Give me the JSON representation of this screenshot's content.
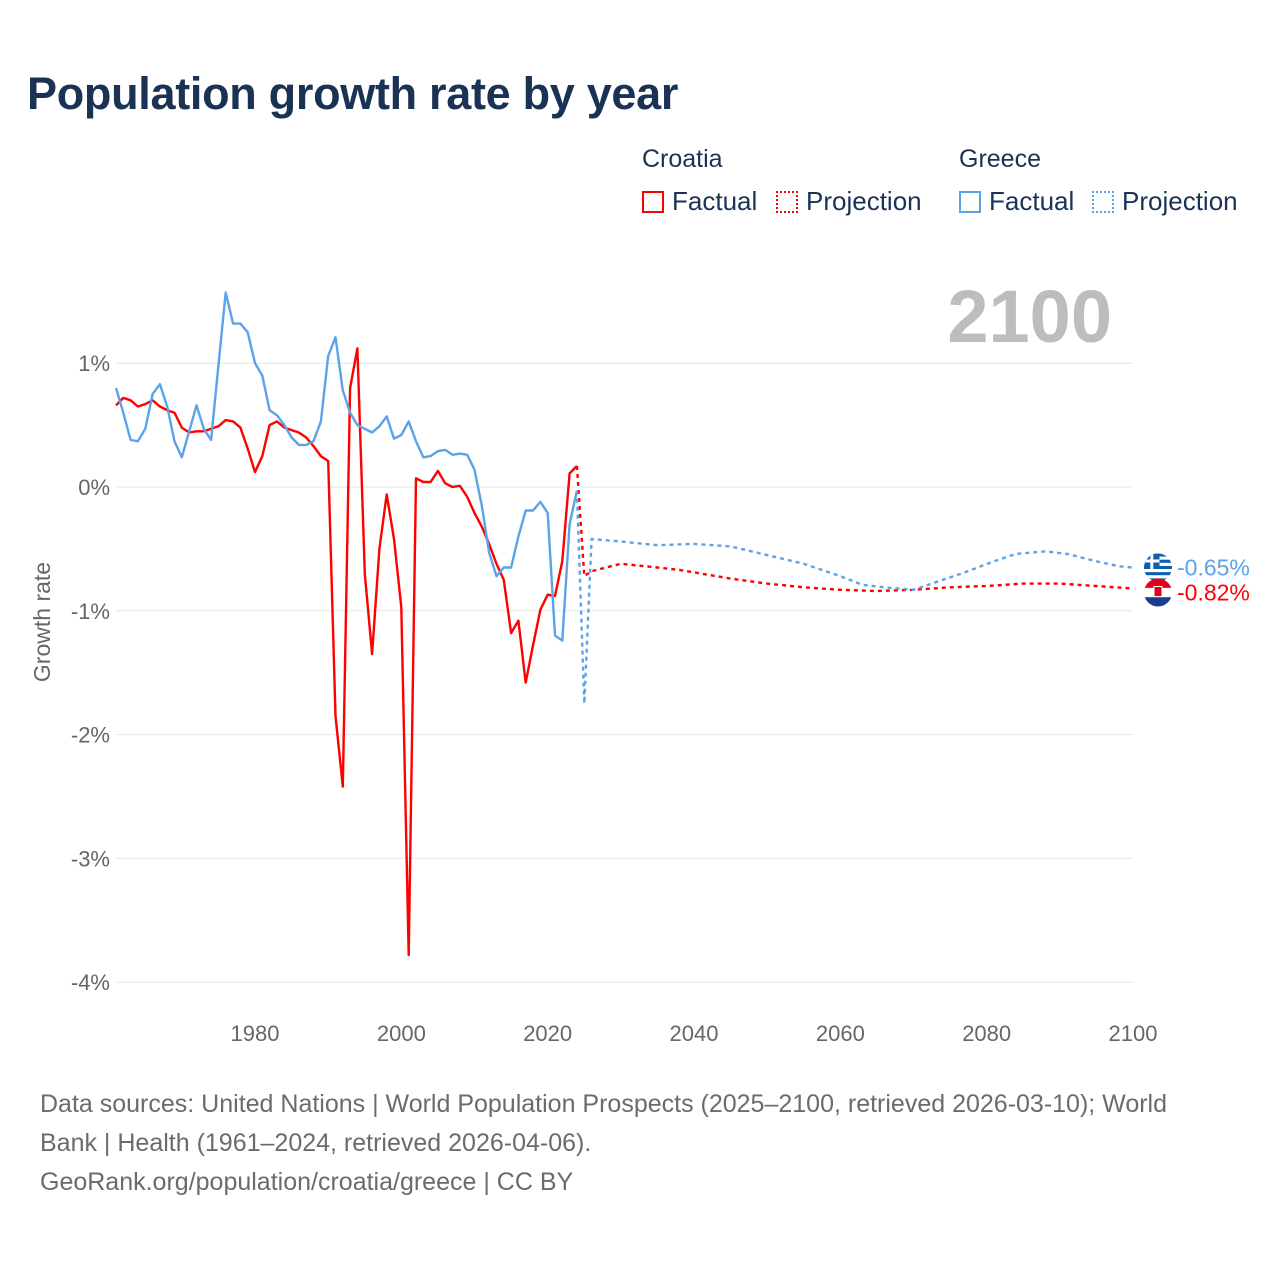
{
  "title": "Population growth rate by year",
  "legend": {
    "groups": [
      {
        "name": "Croatia",
        "color": "#ff0000",
        "factual": "Factual",
        "projection": "Projection"
      },
      {
        "name": "Greece",
        "color": "#5ba3e8",
        "factual": "Factual",
        "projection": "Projection"
      }
    ]
  },
  "year_display": "2100",
  "footer": {
    "line1": "Data sources: United Nations | World Population Prospects (2025–2100, retrieved 2026-03-10); World",
    "line2": "Bank | Health (1961–2024, retrieved 2026-04-06).",
    "line3": "GeoRank.org/population/croatia/greece | CC BY"
  },
  "chart_data": {
    "type": "line",
    "title": "Population growth rate by year",
    "xlabel": "",
    "ylabel": "Growth rate",
    "xlim": [
      1961,
      2100
    ],
    "ylim": [
      -4.2,
      1.8
    ],
    "grid": true,
    "x_ticks": [
      {
        "v": 1980,
        "label": "1980"
      },
      {
        "v": 2000,
        "label": "2000"
      },
      {
        "v": 2020,
        "label": "2020"
      },
      {
        "v": 2040,
        "label": "2040"
      },
      {
        "v": 2060,
        "label": "2060"
      },
      {
        "v": 2080,
        "label": "2080"
      },
      {
        "v": 2100,
        "label": "2100"
      }
    ],
    "y_ticks": [
      {
        "v": 1,
        "label": "1%"
      },
      {
        "v": 0,
        "label": "0%"
      },
      {
        "v": -1,
        "label": "-1%"
      },
      {
        "v": -2,
        "label": "-2%"
      },
      {
        "v": -3,
        "label": "-3%"
      },
      {
        "v": -4,
        "label": "-4%"
      }
    ],
    "series": [
      {
        "name": "Croatia",
        "kind": "factual",
        "color": "#ff0000",
        "x_start": 1961,
        "values": [
          0.66,
          0.72,
          0.7,
          0.65,
          0.67,
          0.7,
          0.65,
          0.62,
          0.6,
          0.48,
          0.44,
          0.45,
          0.45,
          0.47,
          0.49,
          0.54,
          0.53,
          0.48,
          0.31,
          0.12,
          0.25,
          0.5,
          0.53,
          0.48,
          0.46,
          0.44,
          0.4,
          0.33,
          0.25,
          0.21,
          -1.85,
          -2.42,
          0.8,
          1.12,
          -0.7,
          -1.35,
          -0.5,
          -0.06,
          -0.42,
          -0.97,
          -3.78,
          0.07,
          0.04,
          0.04,
          0.13,
          0.03,
          0.0,
          0.01,
          -0.08,
          -0.21,
          -0.32,
          -0.46,
          -0.62,
          -0.75,
          -1.18,
          -1.08,
          -1.58,
          -1.28,
          -0.99,
          -0.87,
          -0.88,
          -0.6,
          0.11,
          0.17
        ]
      },
      {
        "name": "Greece",
        "kind": "factual",
        "color": "#5ba3e8",
        "x_start": 1961,
        "values": [
          0.8,
          0.6,
          0.38,
          0.37,
          0.47,
          0.75,
          0.83,
          0.65,
          0.37,
          0.24,
          0.45,
          0.66,
          0.47,
          0.38,
          0.98,
          1.57,
          1.32,
          1.32,
          1.25,
          1.0,
          0.9,
          0.62,
          0.58,
          0.5,
          0.4,
          0.34,
          0.34,
          0.37,
          0.53,
          1.06,
          1.21,
          0.78,
          0.6,
          0.5,
          0.47,
          0.44,
          0.49,
          0.57,
          0.39,
          0.42,
          0.53,
          0.37,
          0.24,
          0.25,
          0.29,
          0.3,
          0.26,
          0.27,
          0.26,
          0.14,
          -0.15,
          -0.53,
          -0.72,
          -0.65,
          -0.65,
          -0.4,
          -0.19,
          -0.19,
          -0.12,
          -0.21,
          -1.2,
          -1.24,
          -0.3,
          -0.03
        ]
      },
      {
        "name": "Croatia",
        "kind": "projection",
        "color": "#ff0000",
        "x": [
          2024,
          2025,
          2026,
          2028,
          2030,
          2035,
          2038,
          2040,
          2045,
          2050,
          2055,
          2060,
          2065,
          2070,
          2075,
          2080,
          2085,
          2090,
          2095,
          2100
        ],
        "values": [
          0.17,
          -0.72,
          -0.68,
          -0.65,
          -0.62,
          -0.65,
          -0.67,
          -0.69,
          -0.74,
          -0.78,
          -0.81,
          -0.83,
          -0.84,
          -0.83,
          -0.81,
          -0.8,
          -0.78,
          -0.78,
          -0.8,
          -0.82
        ]
      },
      {
        "name": "Greece",
        "kind": "projection",
        "color": "#5ba3e8",
        "x": [
          2024,
          2025,
          2026,
          2030,
          2035,
          2040,
          2045,
          2050,
          2055,
          2060,
          2063,
          2066,
          2070,
          2073,
          2077,
          2081,
          2084,
          2088,
          2091,
          2095,
          2098,
          2100
        ],
        "values": [
          -0.03,
          -1.75,
          -0.42,
          -0.44,
          -0.47,
          -0.46,
          -0.48,
          -0.55,
          -0.62,
          -0.72,
          -0.79,
          -0.81,
          -0.83,
          -0.77,
          -0.69,
          -0.6,
          -0.54,
          -0.52,
          -0.54,
          -0.6,
          -0.64,
          -0.65
        ]
      }
    ],
    "end_labels": [
      {
        "name": "Greece",
        "label": "-0.65%",
        "value": -0.65,
        "color": "#5ba3e8"
      },
      {
        "name": "Croatia",
        "label": "-0.82%",
        "value": -0.82,
        "color": "#ff0000"
      }
    ]
  }
}
